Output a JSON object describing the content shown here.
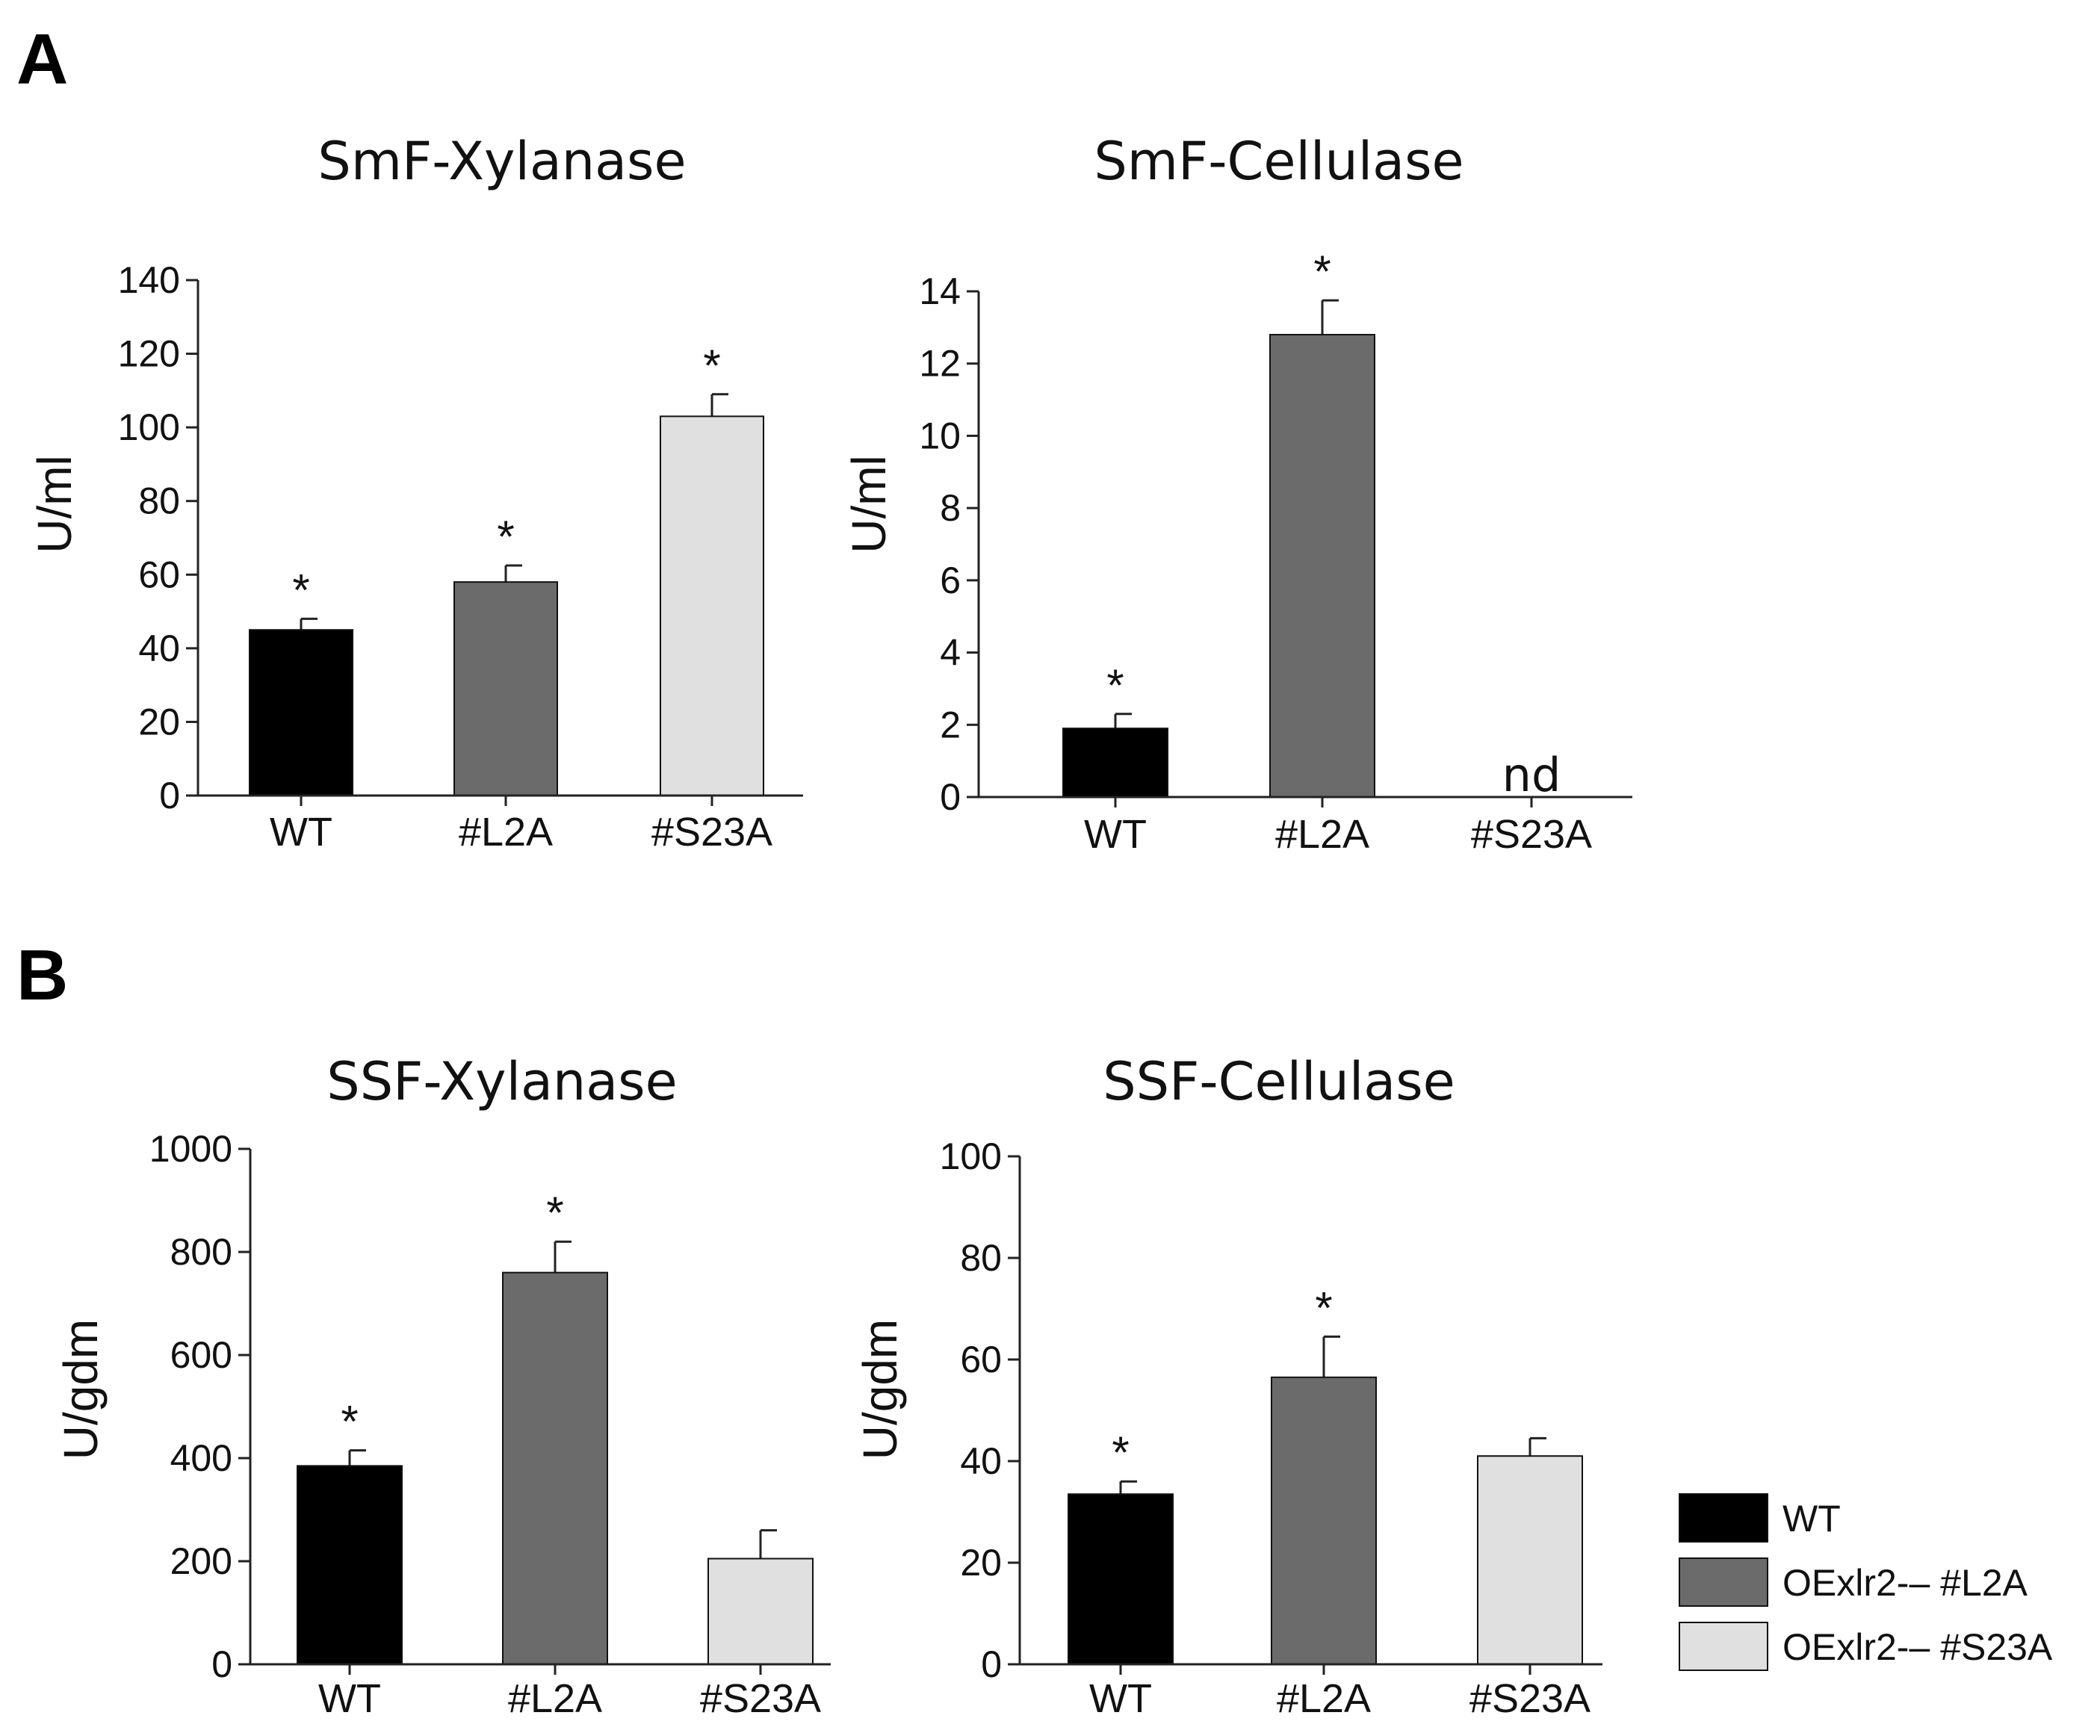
{
  "panels": {
    "a": "A",
    "b": "B"
  },
  "colors": {
    "WT": "#000000",
    "#L2A": "#6b6b6b",
    "#S23A": "#e0e0e0",
    "axis": "#222222"
  },
  "legend": [
    {
      "key": "WT",
      "label": "WT"
    },
    {
      "key": "#L2A",
      "label": "OExlr2-– #L2A"
    },
    {
      "key": "#S23A",
      "label": "OExlr2-–  #S23A"
    }
  ],
  "chart_data": [
    {
      "type": "bar",
      "title": "SmF-Xylanase",
      "ylabel": "U/ml",
      "categories": [
        "WT",
        "#L2A",
        "#S23A"
      ],
      "values": [
        45,
        58,
        103
      ],
      "errors": [
        3,
        4.5,
        6
      ],
      "marks": [
        "*",
        "*",
        "*"
      ],
      "ylim": [
        0,
        140
      ],
      "yticks": [
        0,
        20,
        40,
        60,
        80,
        100,
        120,
        140
      ]
    },
    {
      "type": "bar",
      "title": "SmF-Cellulase",
      "ylabel": "U/ml",
      "categories": [
        "WT",
        "#L2A",
        "#S23A"
      ],
      "values": [
        1.9,
        12.8,
        null
      ],
      "errors": [
        0.4,
        0.95,
        null
      ],
      "marks": [
        "*",
        "*",
        "nd"
      ],
      "ylim": [
        0,
        14
      ],
      "yticks": [
        0,
        2,
        4,
        6,
        8,
        10,
        12,
        14
      ]
    },
    {
      "type": "bar",
      "title": "SSF-Xylanase",
      "ylabel": "U/gdm",
      "categories": [
        "WT",
        "#L2A",
        "#S23A"
      ],
      "values": [
        385,
        760,
        205
      ],
      "errors": [
        30,
        60,
        55
      ],
      "marks": [
        "*",
        "*",
        ""
      ],
      "ylim": [
        0,
        1000
      ],
      "yticks": [
        0,
        200,
        400,
        600,
        800,
        1000
      ]
    },
    {
      "type": "bar",
      "title": "SSF-Cellulase",
      "ylabel": "U/gdm",
      "categories": [
        "WT",
        "#L2A",
        "#S23A"
      ],
      "values": [
        33.5,
        56.5,
        41
      ],
      "errors": [
        2.5,
        8,
        3.5
      ],
      "marks": [
        "*",
        "*",
        ""
      ],
      "ylim": [
        0,
        100
      ],
      "yticks": [
        0,
        20,
        40,
        60,
        80,
        100
      ]
    }
  ]
}
